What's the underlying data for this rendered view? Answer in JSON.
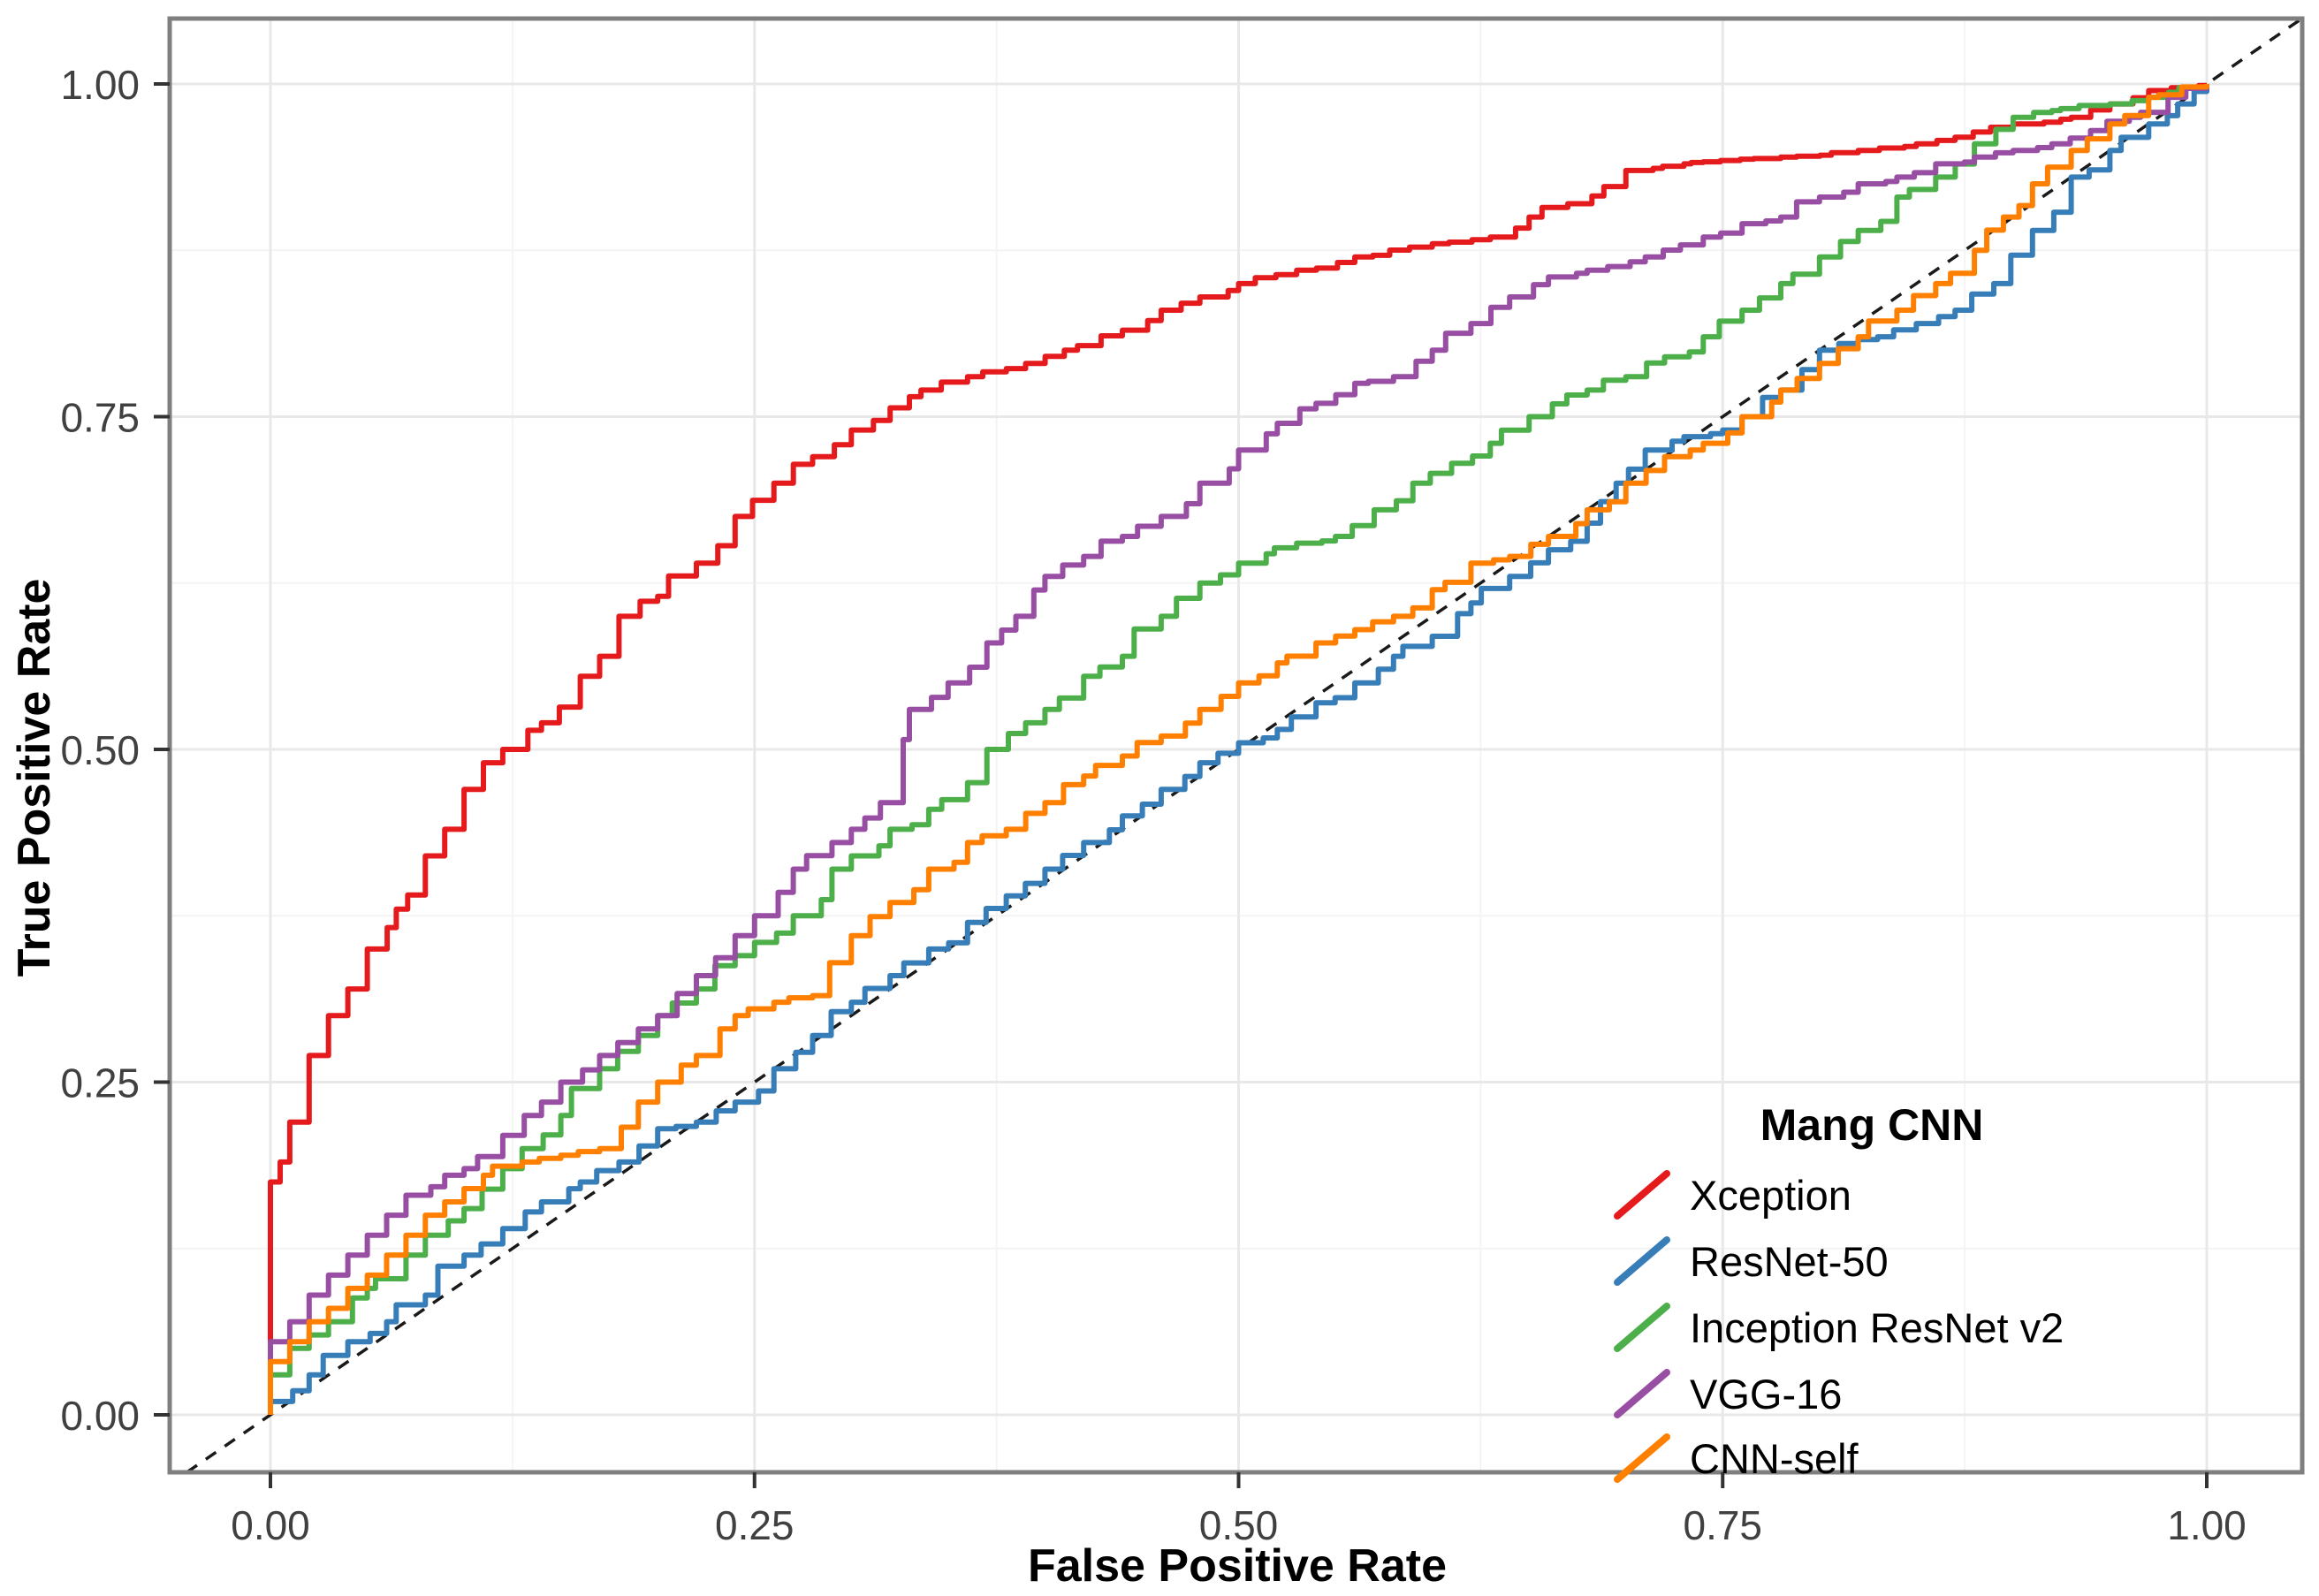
{
  "figure": {
    "background_color": "#ffffff",
    "panel_border_color": "#7f7f7f",
    "grid_major_color": "#e8e8e8",
    "grid_minor_color": "#f4f4f4",
    "tick_mark_color": "#333333",
    "tick_label_color": "#404040",
    "reference_line_color": "#1a1a1a"
  },
  "chart_data": {
    "type": "line",
    "subtype": "roc-curves",
    "title": "",
    "xlabel": "False Positive Rate",
    "ylabel": "True Positive Rate",
    "xlim": [
      0,
      1
    ],
    "ylim": [
      0,
      1
    ],
    "grid": "major 0.25 steps + minor 0.125 steps, light gray, white panel",
    "x_ticks": {
      "values": [
        0,
        0.25,
        0.5,
        0.75,
        1
      ],
      "labels": [
        "0.00",
        "0.25",
        "0.50",
        "0.75",
        "1.00"
      ]
    },
    "y_ticks": {
      "values": [
        0,
        0.25,
        0.5,
        0.75,
        1
      ],
      "labels": [
        "0.00",
        "0.25",
        "0.50",
        "0.75",
        "1.00"
      ]
    },
    "reference_line": {
      "type": "diagonal y=x",
      "style": "dashed",
      "color": "#1a1a1a"
    },
    "legend": {
      "title": "Mang CNN",
      "position": "inside bottom-right",
      "key_glyph": "diagonal-slash"
    },
    "series": [
      {
        "name": "Xception",
        "color": "#e41a1c",
        "points": [
          [
            0,
            0
          ],
          [
            0,
            0.175
          ],
          [
            0.005,
            0.19
          ],
          [
            0.01,
            0.22
          ],
          [
            0.02,
            0.27
          ],
          [
            0.03,
            0.3
          ],
          [
            0.04,
            0.32
          ],
          [
            0.05,
            0.35
          ],
          [
            0.065,
            0.38
          ],
          [
            0.08,
            0.42
          ],
          [
            0.09,
            0.44
          ],
          [
            0.1,
            0.47
          ],
          [
            0.11,
            0.49
          ],
          [
            0.12,
            0.5
          ],
          [
            0.14,
            0.52
          ],
          [
            0.16,
            0.555
          ],
          [
            0.17,
            0.57
          ],
          [
            0.18,
            0.6
          ],
          [
            0.2,
            0.615
          ],
          [
            0.22,
            0.64
          ],
          [
            0.24,
            0.675
          ],
          [
            0.26,
            0.7
          ],
          [
            0.28,
            0.72
          ],
          [
            0.3,
            0.74
          ],
          [
            0.33,
            0.765
          ],
          [
            0.36,
            0.78
          ],
          [
            0.39,
            0.79
          ],
          [
            0.41,
            0.8
          ],
          [
            0.44,
            0.815
          ],
          [
            0.46,
            0.83
          ],
          [
            0.48,
            0.84
          ],
          [
            0.5,
            0.85
          ],
          [
            0.53,
            0.86
          ],
          [
            0.56,
            0.87
          ],
          [
            0.6,
            0.88
          ],
          [
            0.63,
            0.885
          ],
          [
            0.65,
            0.9
          ],
          [
            0.67,
            0.91
          ],
          [
            0.7,
            0.935
          ],
          [
            0.73,
            0.94
          ],
          [
            0.78,
            0.945
          ],
          [
            0.82,
            0.95
          ],
          [
            0.85,
            0.955
          ],
          [
            0.87,
            0.96
          ],
          [
            0.9,
            0.97
          ],
          [
            0.93,
            0.975
          ],
          [
            0.95,
            0.985
          ],
          [
            0.97,
            0.995
          ],
          [
            1,
            1
          ]
        ]
      },
      {
        "name": "ResNet-50",
        "color": "#377eb8",
        "points": [
          [
            0,
            0
          ],
          [
            0,
            0.01
          ],
          [
            0.02,
            0.03
          ],
          [
            0.04,
            0.055
          ],
          [
            0.06,
            0.07
          ],
          [
            0.08,
            0.09
          ],
          [
            0.1,
            0.12
          ],
          [
            0.12,
            0.14
          ],
          [
            0.14,
            0.16
          ],
          [
            0.16,
            0.175
          ],
          [
            0.18,
            0.19
          ],
          [
            0.2,
            0.215
          ],
          [
            0.22,
            0.22
          ],
          [
            0.24,
            0.235
          ],
          [
            0.26,
            0.26
          ],
          [
            0.28,
            0.285
          ],
          [
            0.3,
            0.31
          ],
          [
            0.32,
            0.33
          ],
          [
            0.34,
            0.35
          ],
          [
            0.36,
            0.37
          ],
          [
            0.38,
            0.39
          ],
          [
            0.4,
            0.41
          ],
          [
            0.42,
            0.43
          ],
          [
            0.44,
            0.45
          ],
          [
            0.46,
            0.47
          ],
          [
            0.48,
            0.49
          ],
          [
            0.5,
            0.505
          ],
          [
            0.52,
            0.515
          ],
          [
            0.54,
            0.535
          ],
          [
            0.56,
            0.55
          ],
          [
            0.58,
            0.57
          ],
          [
            0.6,
            0.585
          ],
          [
            0.62,
            0.61
          ],
          [
            0.64,
            0.63
          ],
          [
            0.66,
            0.65
          ],
          [
            0.68,
            0.67
          ],
          [
            0.695,
            0.7
          ],
          [
            0.71,
            0.725
          ],
          [
            0.73,
            0.735
          ],
          [
            0.75,
            0.74
          ],
          [
            0.76,
            0.75
          ],
          [
            0.78,
            0.77
          ],
          [
            0.8,
            0.8
          ],
          [
            0.81,
            0.805
          ],
          [
            0.83,
            0.81
          ],
          [
            0.85,
            0.82
          ],
          [
            0.87,
            0.83
          ],
          [
            0.89,
            0.85
          ],
          [
            0.91,
            0.89
          ],
          [
            0.93,
            0.93
          ],
          [
            0.95,
            0.95
          ],
          [
            0.97,
            0.97
          ],
          [
            0.985,
            0.985
          ],
          [
            1,
            1
          ]
        ]
      },
      {
        "name": "Inception ResNet v2",
        "color": "#4daf4a",
        "points": [
          [
            0,
            0
          ],
          [
            0,
            0.03
          ],
          [
            0.01,
            0.05
          ],
          [
            0.02,
            0.06
          ],
          [
            0.03,
            0.07
          ],
          [
            0.05,
            0.095
          ],
          [
            0.07,
            0.12
          ],
          [
            0.08,
            0.135
          ],
          [
            0.1,
            0.155
          ],
          [
            0.12,
            0.185
          ],
          [
            0.13,
            0.2
          ],
          [
            0.15,
            0.225
          ],
          [
            0.17,
            0.26
          ],
          [
            0.19,
            0.285
          ],
          [
            0.2,
            0.3
          ],
          [
            0.22,
            0.32
          ],
          [
            0.24,
            0.345
          ],
          [
            0.25,
            0.355
          ],
          [
            0.27,
            0.375
          ],
          [
            0.29,
            0.41
          ],
          [
            0.3,
            0.42
          ],
          [
            0.32,
            0.44
          ],
          [
            0.34,
            0.455
          ],
          [
            0.36,
            0.475
          ],
          [
            0.37,
            0.5
          ],
          [
            0.39,
            0.52
          ],
          [
            0.4,
            0.53
          ],
          [
            0.42,
            0.555
          ],
          [
            0.44,
            0.57
          ],
          [
            0.46,
            0.6
          ],
          [
            0.48,
            0.625
          ],
          [
            0.5,
            0.64
          ],
          [
            0.53,
            0.655
          ],
          [
            0.55,
            0.66
          ],
          [
            0.57,
            0.68
          ],
          [
            0.59,
            0.7
          ],
          [
            0.61,
            0.715
          ],
          [
            0.63,
            0.73
          ],
          [
            0.65,
            0.75
          ],
          [
            0.68,
            0.77
          ],
          [
            0.7,
            0.78
          ],
          [
            0.72,
            0.795
          ],
          [
            0.74,
            0.81
          ],
          [
            0.76,
            0.83
          ],
          [
            0.78,
            0.85
          ],
          [
            0.8,
            0.87
          ],
          [
            0.82,
            0.89
          ],
          [
            0.84,
            0.915
          ],
          [
            0.86,
            0.93
          ],
          [
            0.88,
            0.955
          ],
          [
            0.9,
            0.975
          ],
          [
            0.92,
            0.98
          ],
          [
            0.95,
            0.985
          ],
          [
            0.97,
            0.99
          ],
          [
            1,
            1
          ]
        ]
      },
      {
        "name": "VGG-16",
        "color": "#984ea3",
        "points": [
          [
            0,
            0
          ],
          [
            0,
            0.055
          ],
          [
            0.01,
            0.07
          ],
          [
            0.02,
            0.09
          ],
          [
            0.03,
            0.105
          ],
          [
            0.04,
            0.12
          ],
          [
            0.05,
            0.135
          ],
          [
            0.06,
            0.15
          ],
          [
            0.07,
            0.165
          ],
          [
            0.09,
            0.18
          ],
          [
            0.1,
            0.185
          ],
          [
            0.12,
            0.21
          ],
          [
            0.14,
            0.235
          ],
          [
            0.15,
            0.25
          ],
          [
            0.17,
            0.27
          ],
          [
            0.19,
            0.29
          ],
          [
            0.2,
            0.3
          ],
          [
            0.22,
            0.33
          ],
          [
            0.24,
            0.36
          ],
          [
            0.25,
            0.375
          ],
          [
            0.27,
            0.41
          ],
          [
            0.29,
            0.43
          ],
          [
            0.3,
            0.44
          ],
          [
            0.315,
            0.46
          ],
          [
            0.33,
            0.53
          ],
          [
            0.35,
            0.55
          ],
          [
            0.37,
            0.58
          ],
          [
            0.385,
            0.6
          ],
          [
            0.4,
            0.63
          ],
          [
            0.42,
            0.645
          ],
          [
            0.44,
            0.66
          ],
          [
            0.46,
            0.675
          ],
          [
            0.48,
            0.7
          ],
          [
            0.5,
            0.725
          ],
          [
            0.52,
            0.745
          ],
          [
            0.54,
            0.76
          ],
          [
            0.56,
            0.775
          ],
          [
            0.58,
            0.78
          ],
          [
            0.6,
            0.8
          ],
          [
            0.62,
            0.82
          ],
          [
            0.64,
            0.84
          ],
          [
            0.66,
            0.855
          ],
          [
            0.68,
            0.86
          ],
          [
            0.71,
            0.87
          ],
          [
            0.74,
            0.885
          ],
          [
            0.76,
            0.895
          ],
          [
            0.78,
            0.9
          ],
          [
            0.8,
            0.915
          ],
          [
            0.82,
            0.925
          ],
          [
            0.84,
            0.93
          ],
          [
            0.86,
            0.94
          ],
          [
            0.88,
            0.945
          ],
          [
            0.9,
            0.95
          ],
          [
            0.92,
            0.955
          ],
          [
            0.94,
            0.965
          ],
          [
            0.96,
            0.975
          ],
          [
            0.98,
            0.99
          ],
          [
            1,
            1
          ]
        ]
      },
      {
        "name": "CNN-self",
        "color": "#ff7f00",
        "points": [
          [
            0,
            0
          ],
          [
            0,
            0.04
          ],
          [
            0.01,
            0.055
          ],
          [
            0.02,
            0.07
          ],
          [
            0.03,
            0.08
          ],
          [
            0.04,
            0.095
          ],
          [
            0.05,
            0.105
          ],
          [
            0.06,
            0.12
          ],
          [
            0.07,
            0.135
          ],
          [
            0.08,
            0.15
          ],
          [
            0.09,
            0.16
          ],
          [
            0.1,
            0.17
          ],
          [
            0.11,
            0.18
          ],
          [
            0.13,
            0.19
          ],
          [
            0.15,
            0.195
          ],
          [
            0.17,
            0.2
          ],
          [
            0.19,
            0.235
          ],
          [
            0.2,
            0.25
          ],
          [
            0.22,
            0.27
          ],
          [
            0.24,
            0.3
          ],
          [
            0.26,
            0.31
          ],
          [
            0.28,
            0.315
          ],
          [
            0.3,
            0.36
          ],
          [
            0.32,
            0.385
          ],
          [
            0.34,
            0.41
          ],
          [
            0.36,
            0.43
          ],
          [
            0.38,
            0.44
          ],
          [
            0.4,
            0.46
          ],
          [
            0.42,
            0.48
          ],
          [
            0.44,
            0.495
          ],
          [
            0.46,
            0.51
          ],
          [
            0.48,
            0.53
          ],
          [
            0.5,
            0.55
          ],
          [
            0.52,
            0.565
          ],
          [
            0.54,
            0.58
          ],
          [
            0.56,
            0.59
          ],
          [
            0.58,
            0.6
          ],
          [
            0.6,
            0.62
          ],
          [
            0.62,
            0.64
          ],
          [
            0.64,
            0.645
          ],
          [
            0.66,
            0.66
          ],
          [
            0.68,
            0.68
          ],
          [
            0.7,
            0.7
          ],
          [
            0.72,
            0.72
          ],
          [
            0.74,
            0.73
          ],
          [
            0.76,
            0.75
          ],
          [
            0.78,
            0.77
          ],
          [
            0.8,
            0.79
          ],
          [
            0.82,
            0.81
          ],
          [
            0.84,
            0.83
          ],
          [
            0.86,
            0.85
          ],
          [
            0.88,
            0.875
          ],
          [
            0.895,
            0.9
          ],
          [
            0.91,
            0.925
          ],
          [
            0.93,
            0.95
          ],
          [
            0.95,
            0.97
          ],
          [
            0.97,
            0.99
          ],
          [
            1,
            1
          ]
        ]
      }
    ]
  }
}
